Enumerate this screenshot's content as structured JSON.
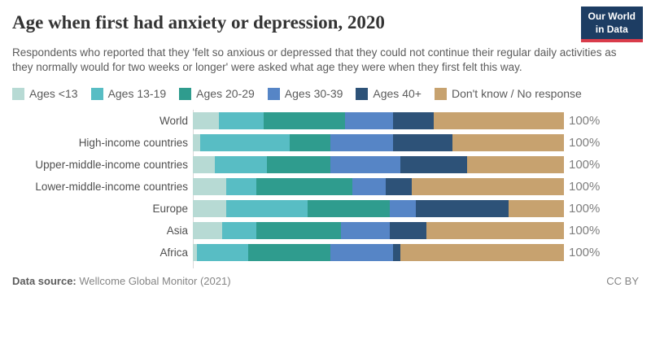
{
  "header": {
    "title": "Age when first had anxiety or depression, 2020",
    "logo": {
      "line1": "Our World",
      "line2": "in Data"
    },
    "subtitle": "Respondents who reported that they 'felt so anxious or depressed that they could not continue their regular daily activities as they normally would for two weeks or longer' were asked what age they were when they first felt this way."
  },
  "brand_colors": {
    "logo_navy": "#1d3d63",
    "logo_red": "#d93c4b"
  },
  "chart_data": {
    "type": "bar",
    "variant": "stacked-horizontal-100percent",
    "title": "Age when first had anxiety or depression, 2020",
    "grid": false,
    "legend_position": "top",
    "xlim": [
      0,
      100
    ],
    "row_total_label": "100%",
    "categories": [
      "World",
      "High-income countries",
      "Upper-middle-income countries",
      "Lower-middle-income countries",
      "Europe",
      "Asia",
      "Africa"
    ],
    "age_groups": [
      {
        "label": "Ages <13",
        "color": "#b7dad4"
      },
      {
        "label": "Ages 13-19",
        "color": "#58bdc4"
      },
      {
        "label": "Ages 20-29",
        "color": "#2f9c8e"
      },
      {
        "label": "Ages 30-39",
        "color": "#5685c6"
      },
      {
        "label": "Ages 40+",
        "color": "#2d5278"
      },
      {
        "label": "Don't know / No response",
        "color": "#c7a26f"
      }
    ],
    "series": [
      {
        "name": "World",
        "values": [
          7,
          12,
          22,
          13,
          11,
          35
        ]
      },
      {
        "name": "High-income countries",
        "values": [
          2,
          24,
          11,
          17,
          16,
          30
        ]
      },
      {
        "name": "Upper-middle-income countries",
        "values": [
          6,
          14,
          17,
          19,
          18,
          26
        ]
      },
      {
        "name": "Lower-middle-income countries",
        "values": [
          9,
          8,
          26,
          9,
          7,
          41
        ]
      },
      {
        "name": "Europe",
        "values": [
          9,
          22,
          22,
          7,
          25,
          15
        ]
      },
      {
        "name": "Asia",
        "values": [
          8,
          9,
          23,
          13,
          10,
          37
        ]
      },
      {
        "name": "Africa",
        "values": [
          1,
          14,
          22,
          17,
          2,
          44
        ]
      }
    ]
  },
  "footer": {
    "data_source_label": "Data source:",
    "data_source_value": "Wellcome Global Monitor (2021)",
    "license": "CC BY"
  }
}
